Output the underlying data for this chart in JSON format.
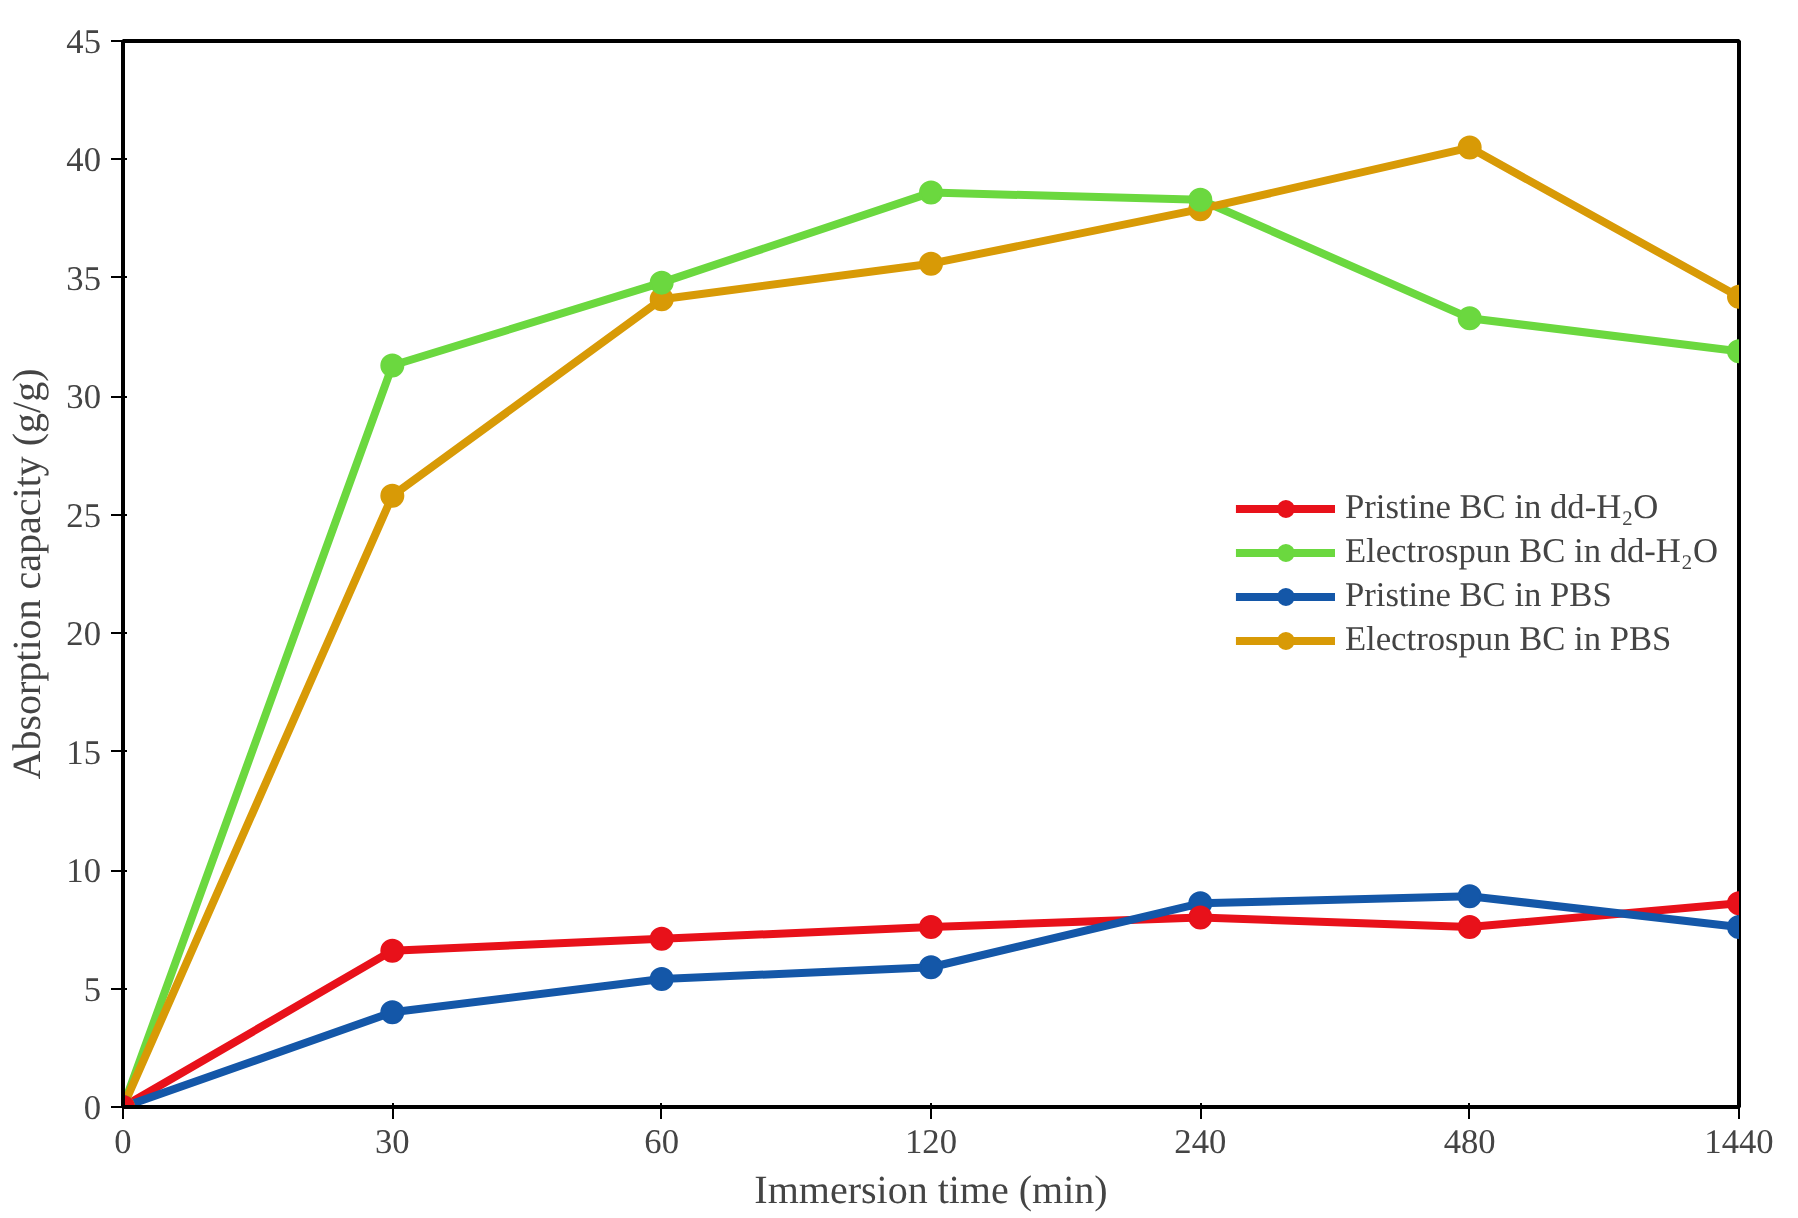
{
  "chart_data": {
    "type": "line",
    "xlabel": "Immersion time (min)",
    "ylabel": "Absorption capacity (g/g)",
    "categories": [
      "0",
      "30",
      "60",
      "120",
      "240",
      "480",
      "1440"
    ],
    "ylim": [
      0,
      45
    ],
    "yticks": [
      0,
      5,
      10,
      15,
      20,
      25,
      30,
      35,
      40,
      45
    ],
    "grid": false,
    "legend": "right",
    "marker": "circle",
    "line_style": "solid",
    "series": [
      {
        "name": "Pristine BC in dd-H₂O",
        "color": "#e8111a",
        "values": [
          0,
          6.6,
          7.1,
          7.6,
          8.0,
          7.6,
          8.6
        ]
      },
      {
        "name": "Electrospun BC in dd-H₂O",
        "color": "#6bd83f",
        "values": [
          0,
          31.3,
          34.8,
          38.6,
          38.3,
          33.3,
          31.9
        ]
      },
      {
        "name": "Pristine BC in PBS",
        "color": "#1457a8",
        "values": [
          0,
          4.0,
          5.4,
          5.9,
          8.6,
          8.9,
          7.6
        ]
      },
      {
        "name": "Electrospun BC in PBS",
        "color": "#d89a06",
        "values": [
          0,
          25.8,
          34.1,
          35.6,
          37.9,
          40.5,
          34.2
        ]
      }
    ]
  }
}
